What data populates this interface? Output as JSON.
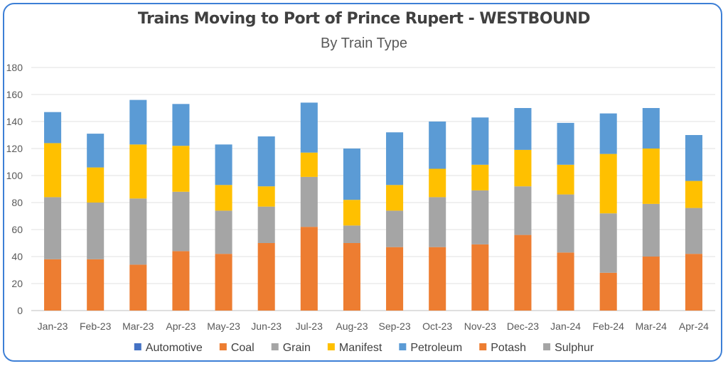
{
  "chart_data": {
    "type": "bar",
    "stacked": true,
    "title": "Trains Moving to Port of Prince Rupert - WESTBOUND",
    "subtitle": "By Train Type",
    "categories": [
      "Jan-23",
      "Feb-23",
      "Mar-23",
      "Apr-23",
      "May-23",
      "Jun-23",
      "Jul-23",
      "Aug-23",
      "Sep-23",
      "Oct-23",
      "Nov-23",
      "Dec-23",
      "Jan-24",
      "Feb-24",
      "Mar-24",
      "Apr-24"
    ],
    "ylim": [
      0,
      180
    ],
    "yticks": [
      "0",
      "20",
      "40",
      "60",
      "80",
      "100",
      "120",
      "140",
      "160",
      "180"
    ],
    "grid": true,
    "legend_position": "bottom",
    "series": [
      {
        "name": "Automotive",
        "color": "#4472c4",
        "values": [
          0,
          0,
          0,
          0,
          0,
          0,
          0,
          0,
          0,
          0,
          0,
          0,
          0,
          0,
          0,
          0
        ]
      },
      {
        "name": "Coal",
        "color": "#ed7d31",
        "values": [
          0,
          0,
          0,
          0,
          0,
          0,
          0,
          0,
          0,
          0,
          0,
          0,
          0,
          0,
          0,
          0
        ]
      },
      {
        "name": "Grain",
        "color": "#a5a5a5",
        "values": [
          0,
          0,
          0,
          0,
          0,
          0,
          0,
          0,
          0,
          0,
          0,
          0,
          0,
          0,
          0,
          0
        ]
      },
      {
        "name": "Manifest",
        "color": "#ffc000",
        "values": [
          40,
          26,
          40,
          34,
          19,
          15,
          18,
          19,
          19,
          21,
          19,
          27,
          22,
          44,
          41,
          20
        ]
      },
      {
        "name": "Petroleum",
        "color": "#5b9bd5",
        "values": [
          23,
          25,
          33,
          31,
          30,
          37,
          37,
          38,
          39,
          35,
          35,
          31,
          31,
          30,
          30,
          34
        ]
      },
      {
        "name": "Potash",
        "color": "#ed7d31",
        "values": [
          38,
          38,
          34,
          44,
          42,
          50,
          62,
          50,
          47,
          47,
          49,
          56,
          43,
          28,
          40,
          42
        ]
      },
      {
        "name": "Sulphur",
        "color": "#a5a5a5",
        "values": [
          46,
          42,
          49,
          44,
          32,
          27,
          37,
          13,
          27,
          37,
          40,
          36,
          43,
          44,
          39,
          34
        ]
      }
    ],
    "stack_order": [
      "Potash",
      "Sulphur",
      "Manifest",
      "Petroleum"
    ]
  }
}
